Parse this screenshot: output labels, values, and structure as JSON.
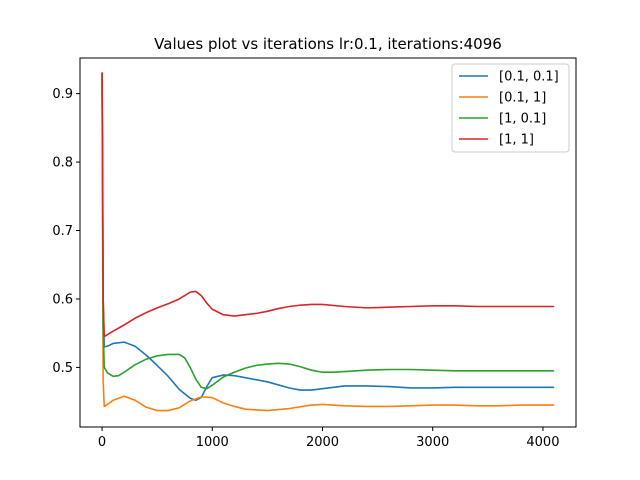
{
  "chart_data": {
    "type": "line",
    "title": "Values plot vs iterations lr:0.1, iterations:4096",
    "xlabel": "",
    "ylabel": "",
    "xlim": [
      -200,
      4300
    ],
    "ylim": [
      0.413,
      0.952
    ],
    "xticks": [
      0,
      1000,
      2000,
      3000,
      4000
    ],
    "yticks": [
      0.5,
      0.6,
      0.7,
      0.8,
      0.9
    ],
    "grid": false,
    "legend_position": "top-right",
    "series": [
      {
        "name": "[0.1, 0.1]",
        "color": "#1f77b4",
        "x": [
          0,
          5,
          10,
          20,
          50,
          100,
          200,
          300,
          400,
          500,
          600,
          700,
          800,
          850,
          900,
          950,
          1000,
          1100,
          1200,
          1300,
          1500,
          1700,
          1800,
          1900,
          2000,
          2200,
          2400,
          2600,
          2800,
          3000,
          3200,
          3400,
          3600,
          3800,
          4096
        ],
        "y": [
          0.92,
          0.78,
          0.6,
          0.53,
          0.531,
          0.535,
          0.537,
          0.531,
          0.518,
          0.503,
          0.487,
          0.468,
          0.455,
          0.452,
          0.456,
          0.472,
          0.485,
          0.489,
          0.488,
          0.485,
          0.479,
          0.47,
          0.467,
          0.467,
          0.469,
          0.473,
          0.473,
          0.472,
          0.47,
          0.47,
          0.471,
          0.471,
          0.471,
          0.471,
          0.471
        ]
      },
      {
        "name": "[0.1, 1]",
        "color": "#ff7f0e",
        "x": [
          0,
          5,
          10,
          20,
          50,
          100,
          200,
          300,
          400,
          500,
          600,
          700,
          800,
          900,
          1000,
          1100,
          1200,
          1300,
          1500,
          1700,
          1900,
          2000,
          2200,
          2400,
          2600,
          2800,
          3000,
          3200,
          3400,
          3600,
          3800,
          4096
        ],
        "y": [
          0.93,
          0.7,
          0.48,
          0.443,
          0.446,
          0.452,
          0.458,
          0.452,
          0.442,
          0.437,
          0.437,
          0.441,
          0.451,
          0.457,
          0.456,
          0.448,
          0.443,
          0.439,
          0.437,
          0.44,
          0.445,
          0.446,
          0.444,
          0.443,
          0.443,
          0.444,
          0.445,
          0.445,
          0.444,
          0.444,
          0.445,
          0.445
        ]
      },
      {
        "name": "[1, 0.1]",
        "color": "#2ca02c",
        "x": [
          0,
          5,
          10,
          20,
          50,
          100,
          150,
          200,
          300,
          400,
          500,
          600,
          700,
          750,
          800,
          850,
          900,
          950,
          1000,
          1100,
          1200,
          1300,
          1400,
          1500,
          1600,
          1700,
          1800,
          1900,
          2000,
          2100,
          2200,
          2400,
          2600,
          2800,
          3000,
          3200,
          3400,
          3600,
          3800,
          4096
        ],
        "y": [
          0.93,
          0.75,
          0.56,
          0.5,
          0.492,
          0.487,
          0.488,
          0.493,
          0.504,
          0.512,
          0.517,
          0.519,
          0.519,
          0.514,
          0.5,
          0.483,
          0.471,
          0.469,
          0.474,
          0.486,
          0.493,
          0.499,
          0.503,
          0.505,
          0.506,
          0.505,
          0.501,
          0.496,
          0.493,
          0.493,
          0.494,
          0.496,
          0.497,
          0.497,
          0.496,
          0.495,
          0.495,
          0.495,
          0.495,
          0.495
        ]
      },
      {
        "name": "[1, 1]",
        "color": "#d62728",
        "x": [
          0,
          5,
          10,
          20,
          50,
          100,
          200,
          300,
          400,
          500,
          600,
          700,
          750,
          800,
          850,
          900,
          950,
          1000,
          1100,
          1200,
          1300,
          1400,
          1500,
          1600,
          1700,
          1800,
          1900,
          2000,
          2200,
          2400,
          2600,
          2800,
          3000,
          3200,
          3400,
          3600,
          3800,
          4096
        ],
        "y": [
          0.93,
          0.82,
          0.6,
          0.545,
          0.548,
          0.553,
          0.562,
          0.572,
          0.58,
          0.587,
          0.593,
          0.6,
          0.605,
          0.61,
          0.611,
          0.605,
          0.594,
          0.585,
          0.577,
          0.575,
          0.577,
          0.579,
          0.582,
          0.586,
          0.589,
          0.591,
          0.592,
          0.592,
          0.589,
          0.587,
          0.588,
          0.589,
          0.59,
          0.59,
          0.589,
          0.589,
          0.589,
          0.589
        ]
      }
    ]
  }
}
